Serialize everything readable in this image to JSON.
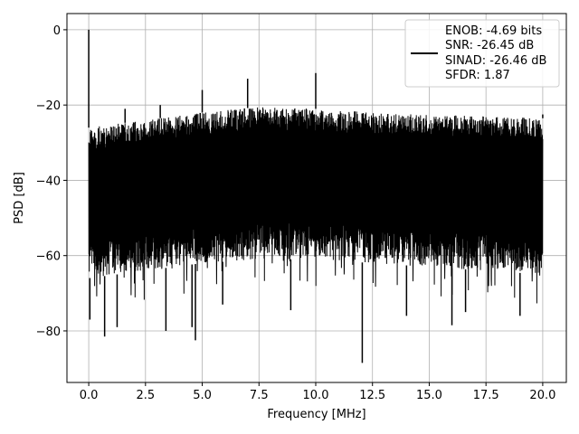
{
  "chart_data": {
    "type": "line",
    "title": "",
    "xlabel": "Frequency [MHz]",
    "ylabel": "PSD [dB]",
    "xlim": [
      -0.96,
      21.04
    ],
    "ylim": [
      -93.7,
      4.3
    ],
    "grid": true,
    "x_ticks": [
      0,
      2.5,
      5,
      7.5,
      10,
      12.5,
      15,
      17.5,
      20
    ],
    "x_tick_labels": [
      "0.0",
      "2.5",
      "5.0",
      "7.5",
      "10.0",
      "12.5",
      "15.0",
      "17.5",
      "20.0"
    ],
    "y_ticks": [
      0,
      -20,
      -40,
      -60,
      -80
    ],
    "y_tick_labels": [
      "0",
      "−20",
      "−40",
      "−60",
      "−80"
    ],
    "legend": {
      "placement": "top-right",
      "entries": [
        "ENOB: -4.69 bits",
        "SNR: -26.45 dB",
        "SINAD: -26.46 dB",
        "SFDR: 1.87"
      ]
    },
    "series": [
      {
        "name": "PSD",
        "color": "#000000",
        "description_of_noise_floor": "dense noise between envelopes",
        "upper_envelope": {
          "x": [
            0,
            2.5,
            5,
            7.5,
            10,
            12.5,
            15,
            17.5,
            20
          ],
          "y": [
            -26,
            -24,
            -22,
            -20.5,
            -21,
            -22,
            -22.5,
            -23,
            -23.5
          ]
        },
        "lower_envelope": {
          "x": [
            0,
            2.5,
            5,
            7.5,
            10,
            12.5,
            15,
            17.5,
            20
          ],
          "y": [
            -66,
            -64,
            -62,
            -61,
            -61,
            -62,
            -63,
            -64,
            -65
          ]
        },
        "spikes": [
          [
            0,
            0
          ],
          [
            1.6,
            -21
          ],
          [
            3.15,
            -20
          ],
          [
            5.0,
            -16
          ],
          [
            7.0,
            -13
          ],
          [
            10.0,
            -11.5
          ],
          [
            20.0,
            -22.5
          ]
        ],
        "dips": [
          [
            0.05,
            -77
          ],
          [
            0.7,
            -81.5
          ],
          [
            1.25,
            -79
          ],
          [
            3.4,
            -80
          ],
          [
            4.7,
            -82.5
          ],
          [
            4.55,
            -79
          ],
          [
            5.9,
            -73
          ],
          [
            8.9,
            -74.5
          ],
          [
            12.05,
            -88.5
          ],
          [
            14.0,
            -76
          ],
          [
            16.0,
            -78.5
          ],
          [
            16.6,
            -75
          ],
          [
            19.0,
            -76
          ]
        ]
      }
    ]
  }
}
